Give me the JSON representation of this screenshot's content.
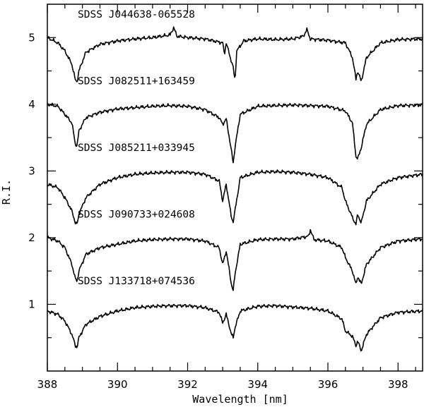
{
  "chart_data": {
    "type": "line",
    "xlabel": "Wavelength [nm]",
    "ylabel": "R.I.",
    "xlim": [
      388,
      398.7
    ],
    "ylim": [
      0,
      5.5
    ],
    "x_ticks": [
      388,
      390,
      392,
      394,
      396,
      398
    ],
    "y_ticks": [
      1,
      2,
      3,
      4,
      5
    ],
    "grid": false,
    "series": [
      {
        "name": "SDSS J044638-065528",
        "offset": 4,
        "x": [
          388.0,
          388.3,
          388.5,
          388.7,
          388.8,
          388.85,
          388.9,
          389.1,
          389.5,
          390.0,
          390.5,
          391.0,
          391.5,
          391.6,
          391.7,
          392.0,
          392.5,
          393.0,
          393.05,
          393.1,
          393.3,
          393.35,
          393.4,
          393.6,
          394.0,
          394.5,
          395.0,
          395.3,
          395.4,
          395.5,
          396.0,
          396.5,
          396.7,
          396.8,
          396.85,
          396.95,
          397.1,
          397.5,
          398.0,
          398.7
        ],
        "y": [
          5.0,
          4.92,
          4.8,
          4.6,
          4.36,
          4.34,
          4.5,
          4.78,
          4.9,
          4.95,
          4.98,
          5.0,
          5.04,
          5.15,
          5.02,
          5.0,
          4.98,
          4.92,
          4.75,
          4.92,
          4.55,
          4.35,
          4.8,
          4.95,
          4.98,
          4.97,
          4.98,
          5.02,
          5.12,
          4.98,
          4.96,
          4.92,
          4.7,
          4.38,
          4.5,
          4.34,
          4.7,
          4.92,
          4.97,
          4.98
        ]
      },
      {
        "name": "SDSS J082511+163459",
        "offset": 3,
        "x": [
          388.0,
          388.3,
          388.5,
          388.7,
          388.8,
          388.85,
          388.9,
          389.1,
          389.5,
          390.0,
          390.5,
          391.0,
          391.5,
          392.0,
          392.5,
          392.9,
          393.0,
          393.1,
          393.25,
          393.3,
          393.35,
          393.5,
          394.0,
          394.5,
          395.0,
          395.5,
          396.0,
          396.5,
          396.7,
          396.8,
          396.85,
          396.95,
          397.1,
          397.5,
          398.0,
          398.7
        ],
        "y": [
          4.0,
          3.97,
          3.85,
          3.72,
          3.4,
          3.38,
          3.6,
          3.8,
          3.88,
          3.93,
          3.95,
          3.97,
          3.98,
          3.97,
          3.92,
          3.8,
          3.7,
          3.78,
          3.3,
          3.12,
          3.35,
          3.85,
          3.97,
          3.98,
          3.99,
          3.98,
          3.97,
          3.9,
          3.72,
          3.22,
          3.18,
          3.35,
          3.7,
          3.92,
          3.98,
          3.99
        ]
      },
      {
        "name": "SDSS J085211+033945",
        "offset": 2,
        "x": [
          388.0,
          388.3,
          388.5,
          388.7,
          388.8,
          388.85,
          388.9,
          389.1,
          389.5,
          390.0,
          390.5,
          391.0,
          391.5,
          392.0,
          392.5,
          392.9,
          393.0,
          393.1,
          393.25,
          393.3,
          393.35,
          393.5,
          394.0,
          394.5,
          395.0,
          395.5,
          396.0,
          396.4,
          396.5,
          396.7,
          396.8,
          396.85,
          396.95,
          397.1,
          397.5,
          398.0,
          398.7
        ],
        "y": [
          2.8,
          2.75,
          2.6,
          2.4,
          2.22,
          2.2,
          2.35,
          2.6,
          2.8,
          2.9,
          2.95,
          2.97,
          2.98,
          2.98,
          2.95,
          2.85,
          2.55,
          2.8,
          2.3,
          2.24,
          2.4,
          2.9,
          2.98,
          2.99,
          2.98,
          2.95,
          2.9,
          2.75,
          2.55,
          2.3,
          2.2,
          2.35,
          2.22,
          2.55,
          2.8,
          2.9,
          2.95
        ]
      },
      {
        "name": "SDSS J090733+024608",
        "offset": 1,
        "x": [
          388.0,
          388.3,
          388.5,
          388.7,
          388.8,
          388.85,
          388.9,
          389.1,
          389.5,
          390.0,
          390.5,
          391.0,
          391.5,
          392.0,
          392.5,
          392.9,
          393.0,
          393.1,
          393.25,
          393.3,
          393.35,
          393.5,
          394.0,
          394.5,
          395.0,
          395.45,
          395.5,
          395.6,
          396.0,
          396.4,
          396.5,
          396.7,
          396.8,
          396.85,
          396.95,
          397.1,
          397.5,
          398.0,
          398.7
        ],
        "y": [
          2.0,
          1.95,
          1.85,
          1.6,
          1.38,
          1.35,
          1.5,
          1.75,
          1.85,
          1.9,
          1.95,
          1.97,
          1.98,
          1.98,
          1.95,
          1.85,
          1.6,
          1.8,
          1.3,
          1.2,
          1.45,
          1.9,
          1.97,
          1.98,
          1.98,
          2.02,
          2.12,
          1.97,
          1.95,
          1.85,
          1.7,
          1.5,
          1.3,
          1.42,
          1.3,
          1.6,
          1.85,
          1.95,
          1.98
        ]
      },
      {
        "name": "SDSS J133718+074536",
        "offset": 0,
        "x": [
          388.0,
          388.3,
          388.5,
          388.7,
          388.8,
          388.85,
          388.9,
          389.1,
          389.5,
          390.0,
          390.5,
          391.0,
          391.5,
          392.0,
          392.5,
          392.9,
          393.0,
          393.1,
          393.25,
          393.3,
          393.35,
          393.5,
          394.0,
          394.5,
          395.0,
          395.5,
          396.0,
          396.4,
          396.5,
          396.7,
          396.8,
          396.85,
          396.95,
          397.1,
          397.5,
          398.0,
          398.7
        ],
        "y": [
          0.9,
          0.85,
          0.75,
          0.55,
          0.38,
          0.36,
          0.5,
          0.7,
          0.82,
          0.9,
          0.95,
          0.97,
          0.98,
          0.98,
          0.95,
          0.88,
          0.72,
          0.85,
          0.55,
          0.5,
          0.65,
          0.9,
          0.97,
          0.98,
          0.96,
          0.94,
          0.9,
          0.78,
          0.6,
          0.52,
          0.38,
          0.45,
          0.3,
          0.55,
          0.8,
          0.88,
          0.9
        ]
      }
    ]
  }
}
